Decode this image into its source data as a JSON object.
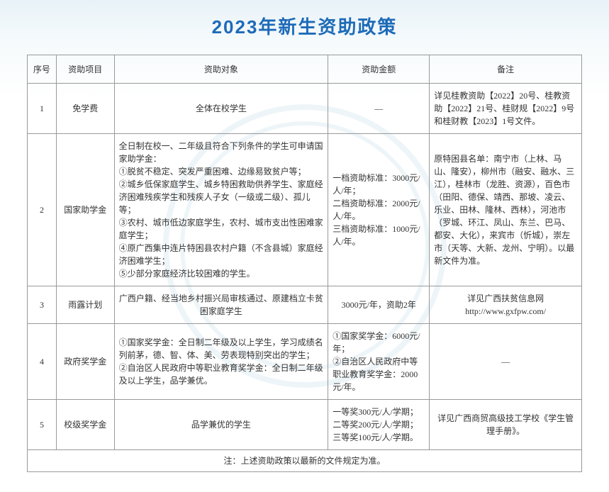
{
  "title": "2023年新生资助政策",
  "colors": {
    "title": "#1e6bb8",
    "border": "#999999",
    "text": "#333333",
    "bg_gradient_top": "#e8f2f8",
    "bg_gradient_bottom": "#ffffff",
    "watermark": "#d0e5f0"
  },
  "typography": {
    "title_fontsize": 26,
    "body_fontsize": 12,
    "title_font": "SimHei",
    "body_font": "SimSun"
  },
  "headers": {
    "seq": "序号",
    "project": "资助项目",
    "target": "资助对象",
    "amount": "资助金额",
    "note": "备注"
  },
  "rows": [
    {
      "seq": "1",
      "project": "免学费",
      "target": "全体在校学生",
      "target_align": "center",
      "amount": "—",
      "amount_align": "center",
      "note": "详见桂教资助【2022】20号、桂教资助【2022】21号、桂财规【2022】9号和桂财教【2023】1号文件。",
      "note_align": "left"
    },
    {
      "seq": "2",
      "project": "国家助学金",
      "target": "全日制在校一、二年级且符合下列条件的学生可申请国家助学金：\n①脱贫不稳定、突发严重困难、边缘易致贫户等；\n②城乡低保家庭学生、城乡特困救助供养学生、家庭经济困难残疾学生和残疾人子女（一级或二级）、孤儿等；\n③农村、城市低边家庭学生，农村、城市支出性困难家庭学生；\n④原广西集中连片特困县农村户籍（不含县城）家庭经济困难学生；\n⑤少部分家庭经济比较困难的学生。",
      "target_align": "left",
      "amount": "一档资助标准：3000元/人/年；\n二档资助标准：2000元/人/年。\n三档资助标准：1000元/人/年。",
      "amount_align": "left",
      "note": "原特困县名单：南宁市（上林、马山、隆安），柳州市（融安、融水、三江），桂林市（龙胜、资源），百色市（田阳、德保、靖西、那坡、凌云、乐业、田林、隆林、西林），河池市（罗城、环江、凤山、东兰、巴马、都安、大化），来宾市（忻城），崇左市（天等、大新、龙州、宁明）。以最新文件为准。",
      "note_align": "left"
    },
    {
      "seq": "3",
      "project": "雨露计划",
      "target": "广西户籍、经当地乡村振兴局审核通过、原建档立卡贫困家庭学生",
      "target_align": "center",
      "amount": "3000元/年，资助2年",
      "amount_align": "center",
      "note": "详见广西扶贫信息网\nhttp://www.gxfpw.com/",
      "note_align": "center"
    },
    {
      "seq": "4",
      "project": "政府奖学金",
      "target": "①国家奖学金：全日制二年级及以上学生，学习成绩名列前茅，德、智、体、美、劳表现特别突出的学生；\n②自治区人民政府中等职业教育奖学金：全日制二年级及以上学生，品学兼优。",
      "target_align": "left",
      "amount": "①国家奖学金：6000元/年；\n②自治区人民政府中等职业教育奖学金：2000元/年。",
      "amount_align": "left",
      "note": "—",
      "note_align": "center"
    },
    {
      "seq": "5",
      "project": "校级奖学金",
      "target": "品学兼优的学生",
      "target_align": "center",
      "amount": "一等奖300元/人/学期；\n二等奖200元/人/学期；\n三等奖100元/人/学期。",
      "amount_align": "left",
      "note": "详见广西商贸高级技工学校《学生管理手册》。",
      "note_align": "center"
    }
  ],
  "footnote": "注：上述资助政策以最新的文件规定为准。"
}
